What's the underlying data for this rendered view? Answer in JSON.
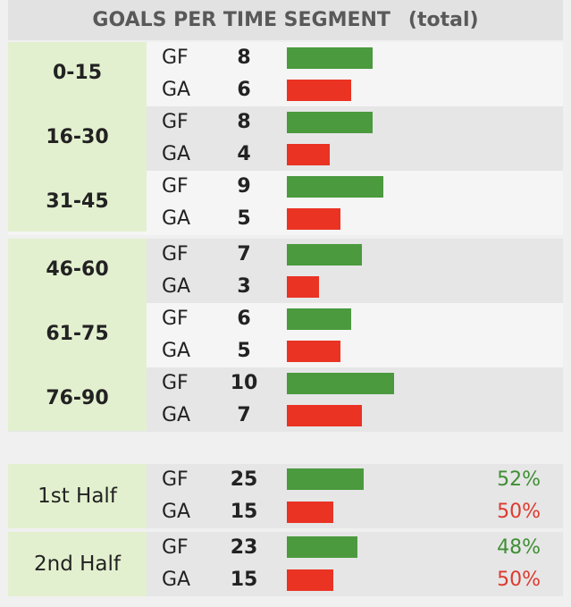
{
  "chart_data": {
    "type": "bar",
    "title": "GOALS PER TIME SEGMENT",
    "subtitle": "(total)",
    "series_labels": [
      "GF",
      "GA"
    ],
    "colors": {
      "GF": "#4b9a3e",
      "GA": "#ea3323"
    },
    "segments": [
      {
        "label": "0-15",
        "gf": 8,
        "ga": 6
      },
      {
        "label": "16-30",
        "gf": 8,
        "ga": 4
      },
      {
        "label": "31-45",
        "gf": 9,
        "ga": 5
      },
      {
        "label": "46-60",
        "gf": 7,
        "ga": 3
      },
      {
        "label": "61-75",
        "gf": 6,
        "ga": 5
      },
      {
        "label": "76-90",
        "gf": 10,
        "ga": 7
      }
    ],
    "halves": [
      {
        "label": "1st Half",
        "gf": 25,
        "ga": 15,
        "gf_pct": "52%",
        "ga_pct": "50%"
      },
      {
        "label": "2nd Half",
        "gf": 23,
        "ga": 15,
        "gf_pct": "48%",
        "ga_pct": "50%"
      }
    ]
  }
}
